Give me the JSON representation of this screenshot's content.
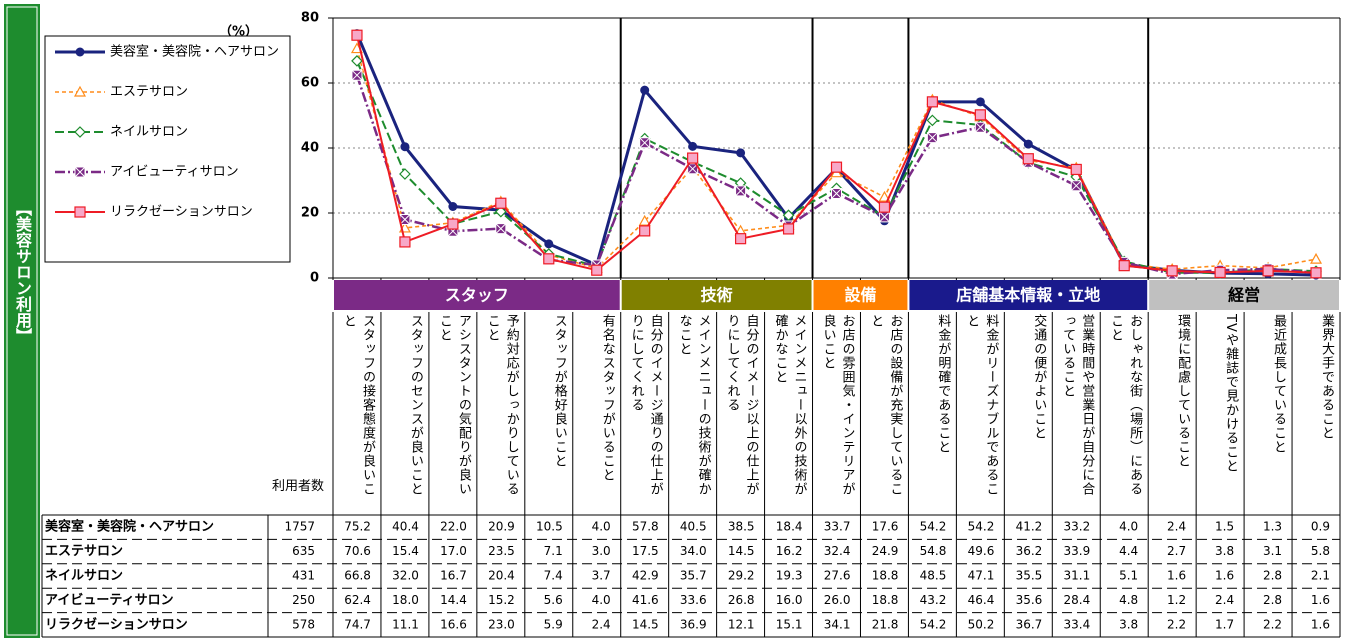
{
  "chart_data": {
    "type": "line",
    "side_label": "【美容サロン利用】",
    "unit_label": "（%）",
    "n_label": "利用者数",
    "ylim": [
      0,
      80
    ],
    "yticks": [
      0,
      20,
      40,
      60,
      80
    ],
    "grid": true,
    "groups": [
      {
        "name": "スタッフ",
        "color": "#7b2a86",
        "text_color": "#ffffff",
        "categories": [
          "スタッフの接客態度が良いこと",
          "スタッフのセンスが良いこと",
          "アシスタントの気配りが良いこと",
          "予約対応がしっかりしていること",
          "スタッフが格好良いこと",
          "有名なスタッフがいること"
        ]
      },
      {
        "name": "技術",
        "color": "#808000",
        "text_color": "#ffffff",
        "categories": [
          "自分のイメージ通りの仕上がりにしてくれる",
          "メインメニューの技術が確かなこと",
          "自分のイメージ以上の仕上がりにしてくれる",
          "メインメニュー以外の技術が確かなこと"
        ]
      },
      {
        "name": "設備",
        "color": "#ff8000",
        "text_color": "#ffffff",
        "categories": [
          "お店の雰囲気・インテリアが良いこと",
          "お店の設備が充実していること"
        ]
      },
      {
        "name": "店舗基本情報・立地",
        "color": "#1a1a8c",
        "text_color": "#ffffff",
        "categories": [
          "料金が明確であること",
          "料金がリーズナブルであること",
          "交通の便がよいこと",
          "営業時間や営業日が自分に合っていること",
          "おしゃれな街（場所）にあること"
        ]
      },
      {
        "name": "経営",
        "color": "#c0c0c0",
        "text_color": "#000000",
        "categories": [
          "環境に配慮していること",
          "TVや雑誌で見かけること",
          "最近成長していること",
          "業界大手であること"
        ]
      }
    ],
    "series": [
      {
        "name": "美容室・美容院・ヘアサロン",
        "n": 1757,
        "color": "#1a237e",
        "dash": "none",
        "width": 3,
        "marker": "circle",
        "values": [
          75.2,
          40.4,
          22.0,
          20.9,
          10.5,
          4.0,
          57.8,
          40.5,
          38.5,
          18.4,
          33.7,
          17.6,
          54.2,
          54.2,
          41.2,
          33.2,
          4.0,
          2.4,
          1.5,
          1.3,
          0.9
        ],
        "value_labels": [
          "75.2",
          "40.4",
          "22.0",
          "20.9",
          "10.5",
          "4.0",
          "57.8",
          "40.5",
          "38.5",
          "18.4",
          "33.7",
          "17.6",
          "54.2",
          "54.2",
          "41.2",
          "33.2",
          "4.0",
          "2.4",
          "1.5",
          "1.3",
          "0.9"
        ]
      },
      {
        "name": "エステサロン",
        "n": 635,
        "color": "#ff8c1a",
        "dash": "4 3",
        "width": 1.6,
        "marker": "triangle",
        "values": [
          70.6,
          15.4,
          17.0,
          23.5,
          7.1,
          3.0,
          17.5,
          34.0,
          14.5,
          16.2,
          32.4,
          24.9,
          54.8,
          49.6,
          36.2,
          33.9,
          4.4,
          2.7,
          3.8,
          3.1,
          5.8
        ],
        "value_labels": [
          "70.6",
          "15.4",
          "17.0",
          "23.5",
          "7.1",
          "3.0",
          "17.5",
          "34.0",
          "14.5",
          "16.2",
          "32.4",
          "24.9",
          "54.8",
          "49.6",
          "36.2",
          "33.9",
          "4.4",
          "2.7",
          "3.8",
          "3.1",
          "5.8"
        ]
      },
      {
        "name": "ネイルサロン",
        "n": 431,
        "color": "#1e8c2e",
        "dash": "9 4",
        "width": 2,
        "marker": "diamond",
        "values": [
          66.8,
          32.0,
          16.7,
          20.4,
          7.4,
          3.7,
          42.9,
          35.7,
          29.2,
          19.3,
          27.6,
          18.8,
          48.5,
          47.1,
          35.5,
          31.1,
          5.1,
          1.6,
          1.6,
          2.8,
          2.1
        ],
        "value_labels": [
          "66.8",
          "32.0",
          "16.7",
          "20.4",
          "7.4",
          "3.7",
          "42.9",
          "35.7",
          "29.2",
          "19.3",
          "27.6",
          "18.8",
          "48.5",
          "47.1",
          "35.5",
          "31.1",
          "5.1",
          "1.6",
          "1.6",
          "2.8",
          "2.1"
        ]
      },
      {
        "name": "アイビューティサロン",
        "n": 250,
        "color": "#7b2a86",
        "dash": "10 3 2 3",
        "width": 2.5,
        "marker": "xsquare",
        "values": [
          62.4,
          18.0,
          14.4,
          15.2,
          5.6,
          4.0,
          41.6,
          33.6,
          26.8,
          16.0,
          26.0,
          18.8,
          43.2,
          46.4,
          35.6,
          28.4,
          4.8,
          1.2,
          2.4,
          2.8,
          1.6
        ],
        "value_labels": [
          "62.4",
          "18.0",
          "14.4",
          "15.2",
          "5.6",
          "4.0",
          "41.6",
          "33.6",
          "26.8",
          "16.0",
          "26.0",
          "18.8",
          "43.2",
          "46.4",
          "35.6",
          "28.4",
          "4.8",
          "1.2",
          "2.4",
          "2.8",
          "1.6"
        ]
      },
      {
        "name": "リラクゼーションサロン",
        "n": 578,
        "color": "#ee1c25",
        "dash": "none",
        "width": 2,
        "marker": "square",
        "values": [
          74.7,
          11.1,
          16.6,
          23.0,
          5.9,
          2.4,
          14.5,
          36.9,
          12.1,
          15.1,
          34.1,
          21.8,
          54.2,
          50.2,
          36.7,
          33.4,
          3.8,
          2.2,
          1.7,
          2.2,
          1.6
        ],
        "value_labels": [
          "74.7",
          "11.1",
          "16.6",
          "23.0",
          "5.9",
          "2.4",
          "14.5",
          "36.9",
          "12.1",
          "15.1",
          "34.1",
          "21.8",
          "54.2",
          "50.2",
          "36.7",
          "33.4",
          "3.8",
          "2.2",
          "1.7",
          "2.2",
          "1.6"
        ]
      }
    ]
  }
}
